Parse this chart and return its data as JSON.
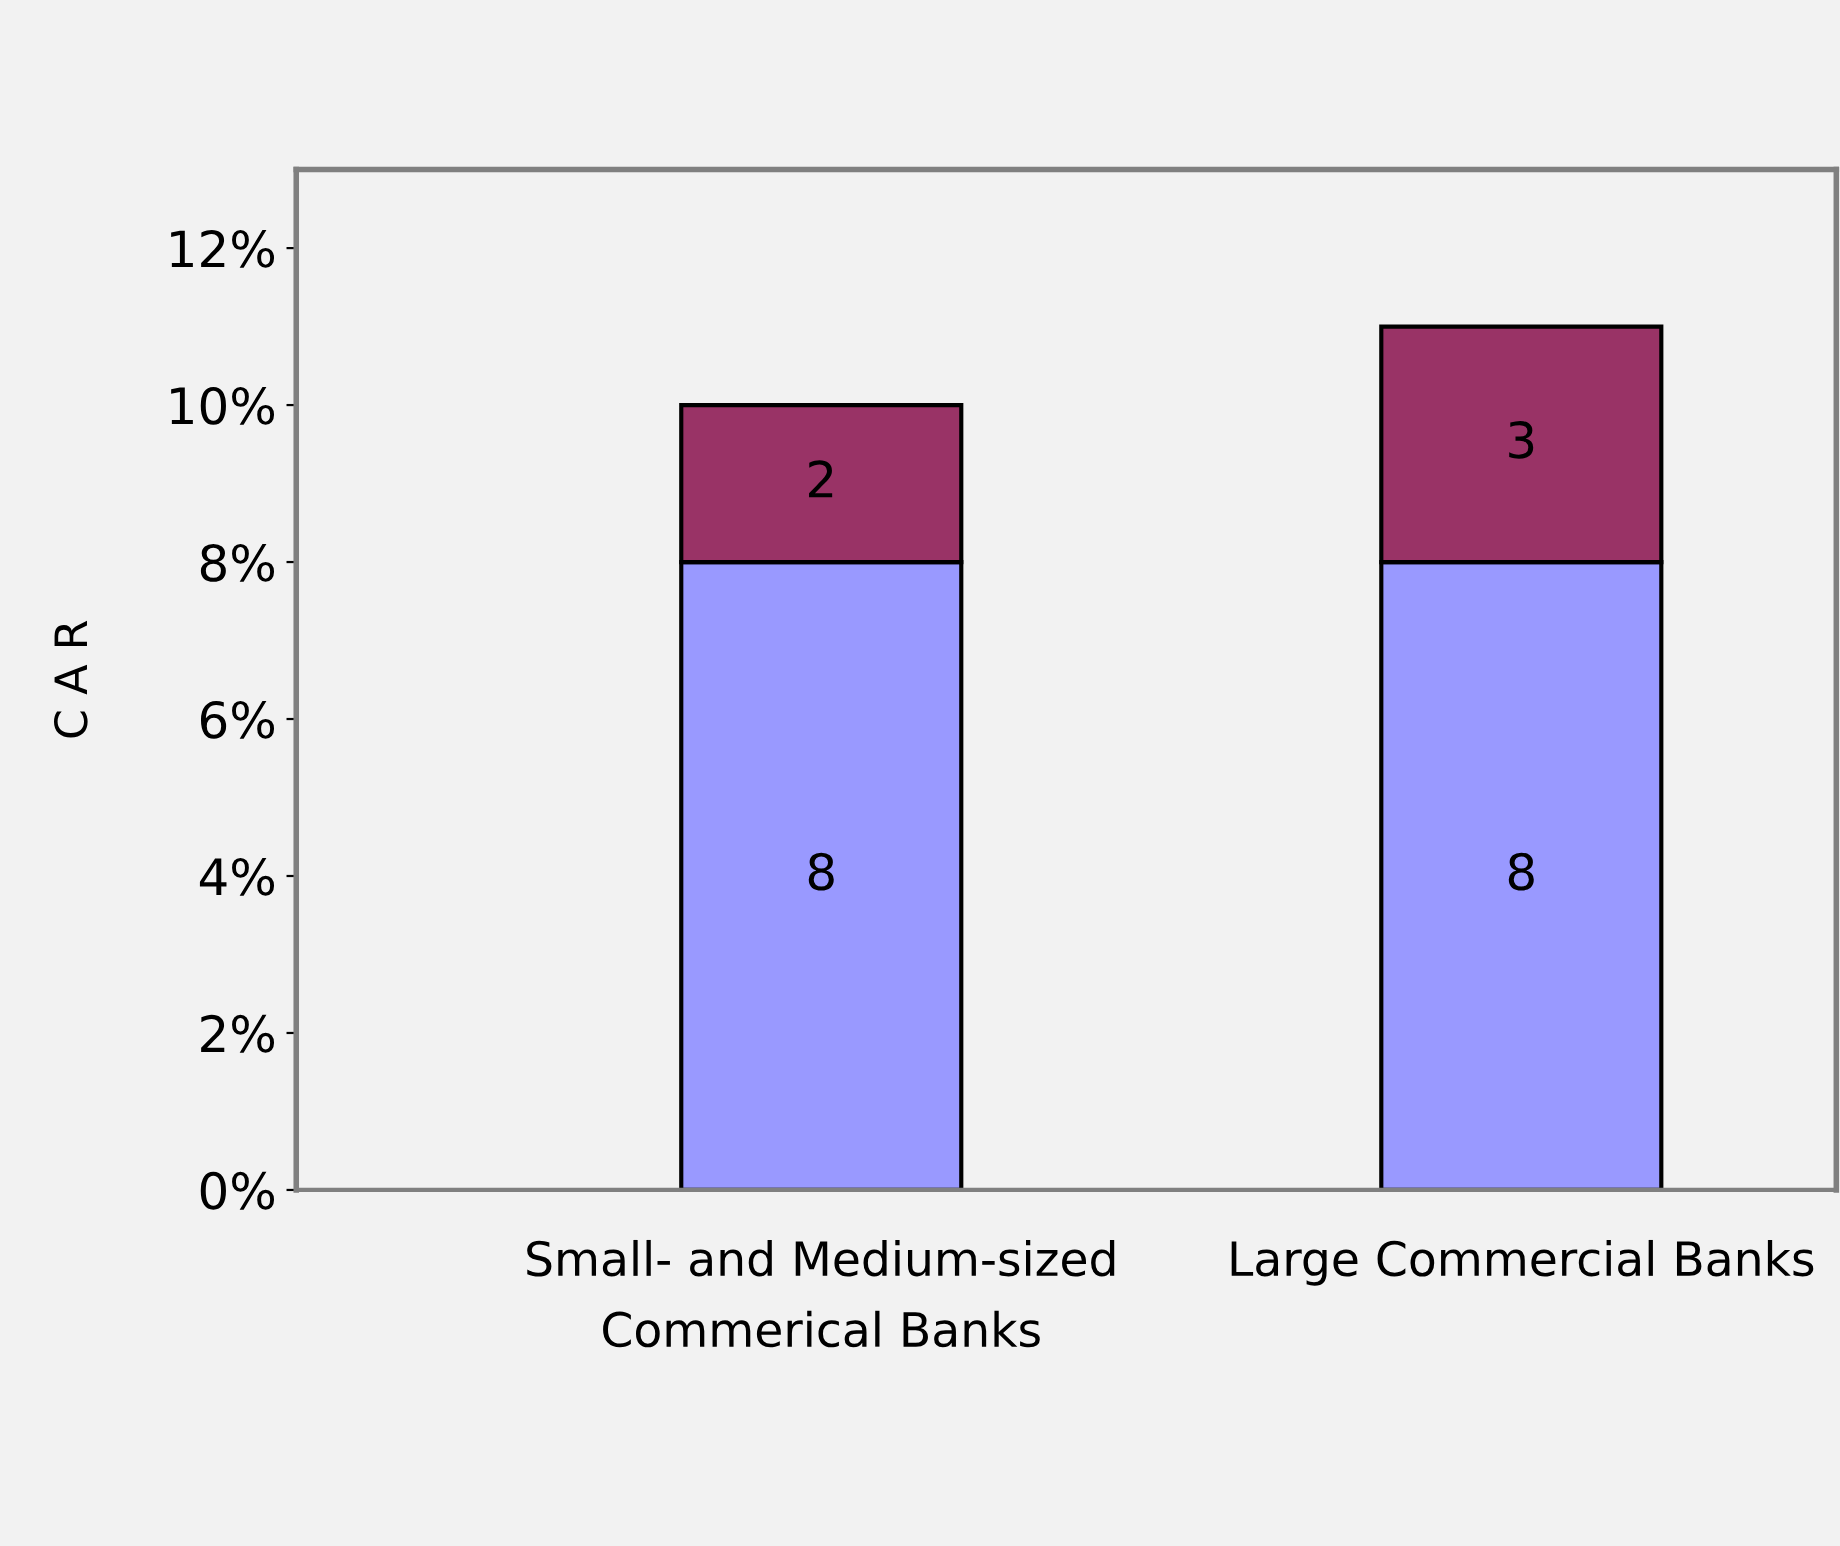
{
  "chart_data": {
    "type": "bar",
    "stacked": true,
    "ylabel": "C A R",
    "categories": [
      "Small- and Medium-sized\nCommerical Banks",
      "Large Commercial Banks"
    ],
    "series": [
      {
        "color": "#9999ff",
        "values": [
          8,
          8
        ]
      },
      {
        "color": "#993366",
        "values": [
          2,
          3
        ]
      }
    ],
    "ylim": [
      0,
      13
    ],
    "yticks": [
      {
        "value": 0,
        "label": "0%"
      },
      {
        "value": 2,
        "label": "2%"
      },
      {
        "value": 4,
        "label": "4%"
      },
      {
        "value": 6,
        "label": "6%"
      },
      {
        "value": 8,
        "label": "8%"
      },
      {
        "value": 10,
        "label": "10%"
      },
      {
        "value": 12,
        "label": "12%"
      }
    ],
    "data_labels": true,
    "grid": false,
    "legend": false
  }
}
